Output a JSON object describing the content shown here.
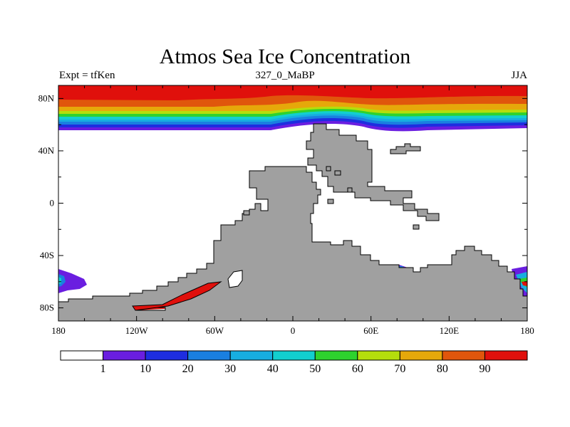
{
  "header": {
    "title": "Atmos Sea Ice Concentration",
    "left": "Expt = tfKen",
    "center": "327_0_MaBP",
    "right": "JJA"
  },
  "axes": {
    "y_ticks": [
      "80N",
      "40N",
      "0",
      "40S",
      "80S"
    ],
    "x_ticks": [
      "180",
      "120W",
      "60W",
      "0",
      "60E",
      "120E",
      "180"
    ]
  },
  "colorbar": {
    "labels": [
      "1",
      "10",
      "20",
      "30",
      "40",
      "50",
      "60",
      "70",
      "80",
      "90"
    ],
    "colors": [
      "#ffffff",
      "#6a1ee0",
      "#1e2de0",
      "#1a7fe0",
      "#17aee0",
      "#12cfcf",
      "#2ed22e",
      "#b4de0c",
      "#e6a80a",
      "#e0560c",
      "#e0100c"
    ]
  },
  "map": {
    "land_color": "#a0a0a0",
    "ocean_color": "#ffffff"
  }
}
